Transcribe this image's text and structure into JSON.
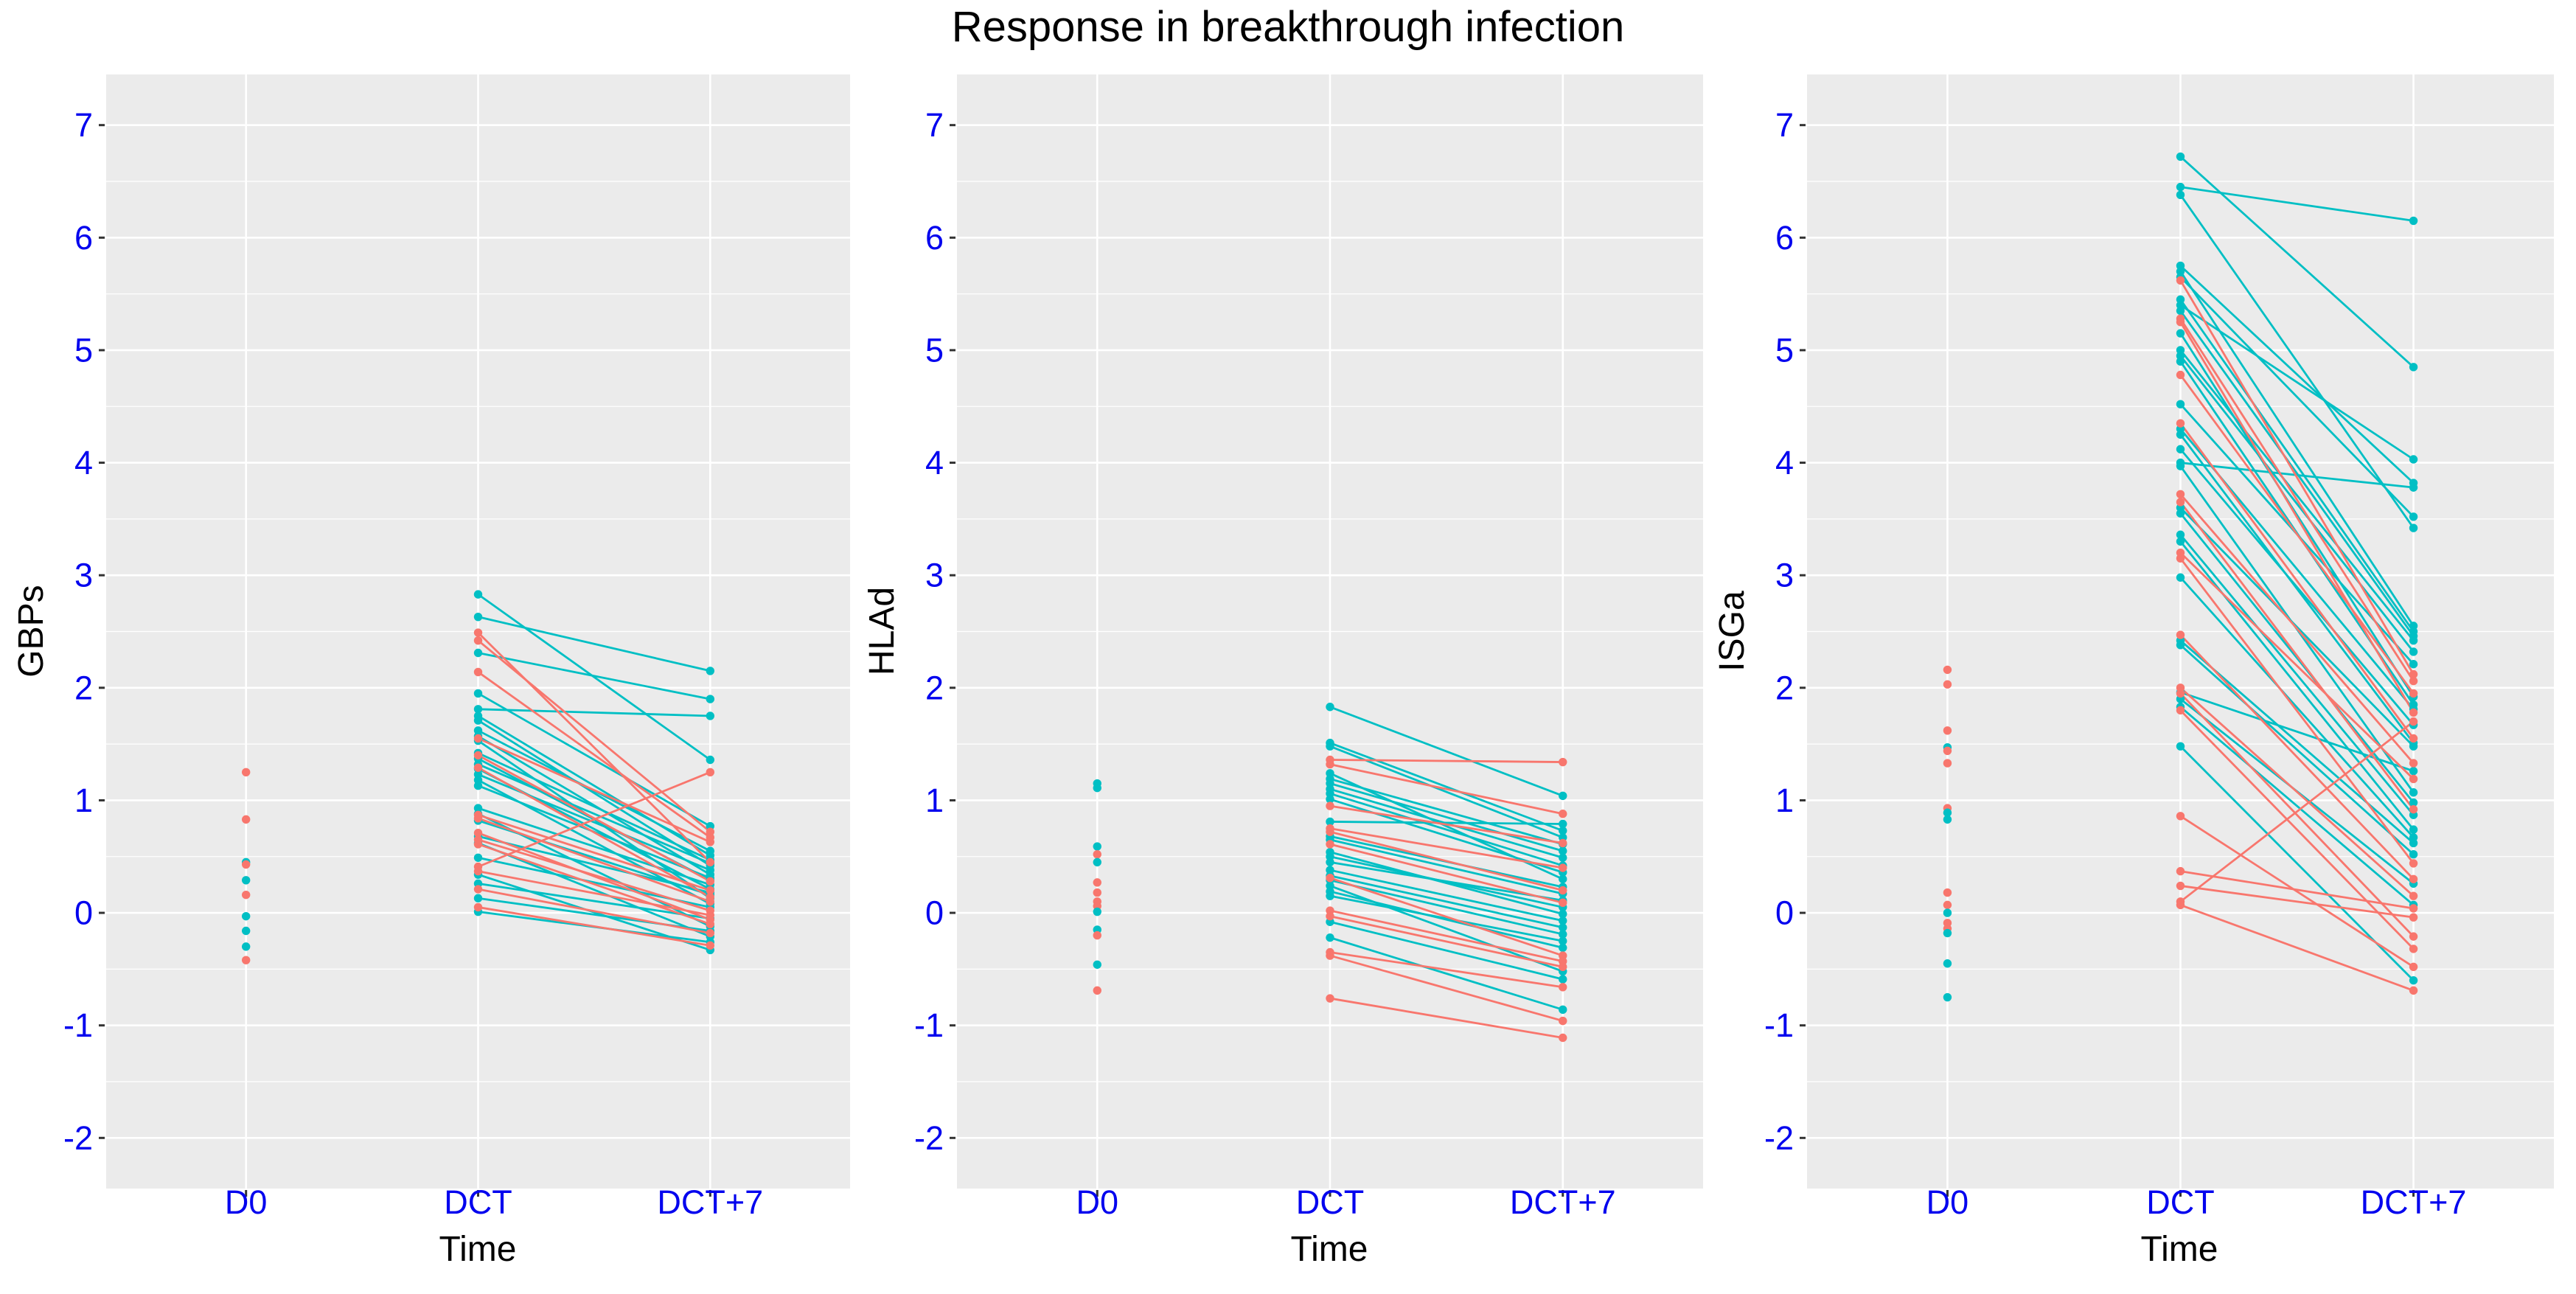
{
  "chart_data": {
    "type": "line",
    "title": "Response in breakthrough infection",
    "xlabel": "Time",
    "categories": [
      "D0",
      "DCT",
      "DCT+7"
    ],
    "y_ticks": [
      -2,
      -1,
      0,
      1,
      2,
      3,
      4,
      5,
      6,
      7
    ],
    "ylim": [
      -2.45,
      7.45
    ],
    "grid": "major-and-minor-horizontal, major-vertical-at-categories",
    "legend": "none",
    "group_colors": {
      "s": "#F8766D",
      "t": "#00BFC4"
    },
    "panels": [
      {
        "ylabel": "GBPs",
        "d0": [
          [
            "s",
            1.25
          ],
          [
            "s",
            0.83
          ],
          [
            "t",
            0.45
          ],
          [
            "s",
            0.43
          ],
          [
            "t",
            0.29
          ],
          [
            "s",
            0.16
          ],
          [
            "t",
            -0.03
          ],
          [
            "t",
            -0.16
          ],
          [
            "t",
            -0.3
          ],
          [
            "s",
            -0.42
          ]
        ],
        "pairs": [
          [
            "t",
            2.83,
            1.36
          ],
          [
            "t",
            2.63,
            2.15
          ],
          [
            "t",
            2.31,
            1.9
          ],
          [
            "t",
            1.95,
            0.77
          ],
          [
            "t",
            1.81,
            1.75
          ],
          [
            "t",
            1.75,
            0.51
          ],
          [
            "t",
            1.71,
            0.42
          ],
          [
            "t",
            1.62,
            0.55
          ],
          [
            "t",
            1.57,
            0.34
          ],
          [
            "t",
            1.53,
            0.13
          ],
          [
            "t",
            1.42,
            0.47
          ],
          [
            "t",
            1.37,
            0.29
          ],
          [
            "t",
            1.32,
            0.44
          ],
          [
            "t",
            1.28,
            0.21
          ],
          [
            "t",
            1.23,
            0.38
          ],
          [
            "t",
            1.18,
            0.08
          ],
          [
            "t",
            1.13,
            0.31
          ],
          [
            "t",
            0.93,
            0.25
          ],
          [
            "t",
            0.88,
            -0.12
          ],
          [
            "t",
            0.82,
            0.16
          ],
          [
            "t",
            0.68,
            0.18
          ],
          [
            "t",
            0.62,
            -0.21
          ],
          [
            "t",
            0.49,
            0.05
          ],
          [
            "t",
            0.34,
            -0.33
          ],
          [
            "t",
            0.26,
            -0.05
          ],
          [
            "t",
            0.13,
            -0.16
          ],
          [
            "t",
            0.01,
            -0.26
          ],
          [
            "s",
            2.49,
            0.45
          ],
          [
            "s",
            2.42,
            0.72
          ],
          [
            "s",
            2.14,
            0.67
          ],
          [
            "s",
            1.55,
            0.63
          ],
          [
            "s",
            1.4,
            0.28
          ],
          [
            "s",
            1.29,
            0.14
          ],
          [
            "s",
            0.87,
            0.2
          ],
          [
            "s",
            0.84,
            0.1
          ],
          [
            "s",
            0.71,
            -0.06
          ],
          [
            "s",
            0.65,
            0.02
          ],
          [
            "s",
            0.61,
            -0.1
          ],
          [
            "s",
            0.41,
            1.25
          ],
          [
            "s",
            0.37,
            -0.02
          ],
          [
            "s",
            0.21,
            -0.18
          ],
          [
            "s",
            0.05,
            -0.29
          ]
        ]
      },
      {
        "ylabel": "HLAd",
        "d0": [
          [
            "t",
            1.15
          ],
          [
            "t",
            1.11
          ],
          [
            "t",
            0.59
          ],
          [
            "s",
            0.52
          ],
          [
            "t",
            0.45
          ],
          [
            "s",
            0.27
          ],
          [
            "s",
            0.18
          ],
          [
            "s",
            0.1
          ],
          [
            "s",
            0.06
          ],
          [
            "t",
            0.01
          ],
          [
            "t",
            -0.15
          ],
          [
            "s",
            -0.2
          ],
          [
            "t",
            -0.46
          ],
          [
            "s",
            -0.69
          ]
        ],
        "pairs": [
          [
            "t",
            1.83,
            1.04
          ],
          [
            "t",
            1.51,
            0.73
          ],
          [
            "t",
            1.48,
            0.67
          ],
          [
            "t",
            1.24,
            0.3
          ],
          [
            "t",
            1.19,
            0.61
          ],
          [
            "t",
            1.15,
            0.55
          ],
          [
            "t",
            1.1,
            0.49
          ],
          [
            "t",
            1.06,
            0.42
          ],
          [
            "t",
            1.01,
            0.36
          ],
          [
            "t",
            0.81,
            0.79
          ],
          [
            "t",
            0.68,
            0.23
          ],
          [
            "t",
            0.65,
            0.17
          ],
          [
            "t",
            0.54,
            -0.01
          ],
          [
            "t",
            0.5,
            0.05
          ],
          [
            "t",
            0.45,
            0.11
          ],
          [
            "t",
            0.38,
            -0.07
          ],
          [
            "t",
            0.33,
            -0.13
          ],
          [
            "t",
            0.29,
            -0.19
          ],
          [
            "t",
            0.24,
            -0.52
          ],
          [
            "t",
            0.19,
            -0.31
          ],
          [
            "t",
            0.15,
            -0.25
          ],
          [
            "t",
            -0.08,
            -0.59
          ],
          [
            "t",
            -0.22,
            -0.86
          ],
          [
            "s",
            1.36,
            1.34
          ],
          [
            "s",
            1.32,
            0.88
          ],
          [
            "s",
            0.95,
            0.62
          ],
          [
            "s",
            0.75,
            0.4
          ],
          [
            "s",
            0.72,
            0.2
          ],
          [
            "s",
            0.61,
            0.09
          ],
          [
            "s",
            0.31,
            -0.38
          ],
          [
            "s",
            0.02,
            -0.43
          ],
          [
            "s",
            -0.03,
            -0.48
          ],
          [
            "s",
            -0.35,
            -0.66
          ],
          [
            "s",
            -0.38,
            -0.96
          ],
          [
            "s",
            -0.76,
            -1.11
          ]
        ]
      },
      {
        "ylabel": "ISGa",
        "d0": [
          [
            "s",
            2.16
          ],
          [
            "s",
            2.03
          ],
          [
            "s",
            1.62
          ],
          [
            "t",
            1.47
          ],
          [
            "s",
            1.44
          ],
          [
            "s",
            1.33
          ],
          [
            "s",
            0.93
          ],
          [
            "t",
            0.89
          ],
          [
            "t",
            0.83
          ],
          [
            "s",
            0.18
          ],
          [
            "s",
            0.07
          ],
          [
            "t",
            0.0
          ],
          [
            "s",
            -0.09
          ],
          [
            "s",
            -0.14
          ],
          [
            "t",
            -0.18
          ],
          [
            "t",
            -0.45
          ],
          [
            "t",
            -0.75
          ]
        ],
        "pairs": [
          [
            "t",
            6.72,
            4.85
          ],
          [
            "t",
            6.45,
            6.15
          ],
          [
            "t",
            6.38,
            3.42
          ],
          [
            "t",
            5.75,
            3.82
          ],
          [
            "t",
            5.7,
            2.55
          ],
          [
            "t",
            5.65,
            3.52
          ],
          [
            "t",
            5.45,
            2.5
          ],
          [
            "t",
            5.4,
            4.03
          ],
          [
            "t",
            5.35,
            2.46
          ],
          [
            "t",
            5.15,
            1.92
          ],
          [
            "t",
            5.0,
            2.42
          ],
          [
            "t",
            4.95,
            2.32
          ],
          [
            "t",
            4.9,
            1.85
          ],
          [
            "t",
            4.52,
            2.21
          ],
          [
            "t",
            4.3,
            1.81
          ],
          [
            "t",
            4.25,
            1.51
          ],
          [
            "t",
            4.12,
            1.67
          ],
          [
            "t",
            4.0,
            3.78
          ],
          [
            "t",
            3.97,
            1.07
          ],
          [
            "t",
            3.6,
            1.48
          ],
          [
            "t",
            3.55,
            0.98
          ],
          [
            "t",
            3.36,
            0.87
          ],
          [
            "t",
            3.3,
            0.74
          ],
          [
            "t",
            2.98,
            0.67
          ],
          [
            "t",
            2.42,
            0.62
          ],
          [
            "t",
            2.38,
            0.52
          ],
          [
            "t",
            1.96,
            1.26
          ],
          [
            "t",
            1.9,
            0.26
          ],
          [
            "t",
            1.83,
            0.07
          ],
          [
            "t",
            1.48,
            -0.6
          ],
          [
            "s",
            5.62,
            2.12
          ],
          [
            "s",
            5.28,
            2.06
          ],
          [
            "s",
            5.25,
            1.78
          ],
          [
            "s",
            4.78,
            1.95
          ],
          [
            "s",
            4.35,
            1.55
          ],
          [
            "s",
            3.72,
            1.33
          ],
          [
            "s",
            3.65,
            0.92
          ],
          [
            "s",
            3.2,
            1.19
          ],
          [
            "s",
            3.15,
            0.44
          ],
          [
            "s",
            2.47,
            0.3
          ],
          [
            "s",
            2.0,
            0.15
          ],
          [
            "s",
            1.95,
            -0.21
          ],
          [
            "s",
            1.8,
            -0.32
          ],
          [
            "s",
            0.86,
            -0.48
          ],
          [
            "s",
            0.37,
            0.04
          ],
          [
            "s",
            0.24,
            -0.04
          ],
          [
            "s",
            0.1,
            1.7
          ],
          [
            "s",
            0.07,
            -0.69
          ]
        ]
      }
    ]
  },
  "styles": {
    "panel_bg": "#EBEBEB",
    "grid_color": "#FFFFFF",
    "tick_label_color": "#0202EE",
    "tick_mark_color": "#333333",
    "axis_title_color": "#000000"
  }
}
